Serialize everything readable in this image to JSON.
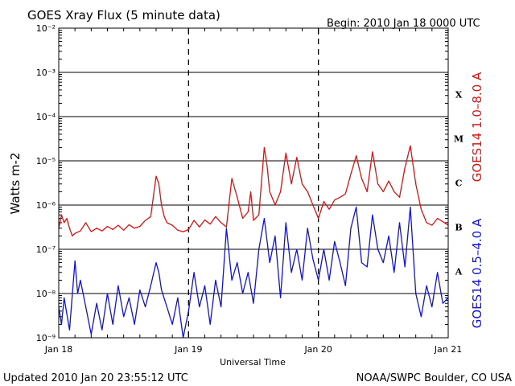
{
  "title": "GOES Xray Flux (5 minute data)",
  "begin_label": "Begin:  2010 Jan 18 0000 UTC",
  "footer_left": "Updated 2010 Jan 20 23:55:12 UTC",
  "footer_right": "NOAA/SWPC Boulder, CO USA",
  "chart_data": {
    "type": "line",
    "title": "GOES Xray Flux (5 minute data)",
    "xlabel": "Universal Time",
    "ylabel": "Watts m-2",
    "y_scale": "log",
    "ylim": [
      1e-09,
      0.01
    ],
    "xlim": [
      0,
      72
    ],
    "x_unit": "hours since 2010 Jan 18 0000 UTC",
    "x_ticks": [
      {
        "x": 0,
        "label": "Jan 18"
      },
      {
        "x": 24,
        "label": "Jan 19"
      },
      {
        "x": 48,
        "label": "Jan 20"
      },
      {
        "x": 72,
        "label": "Jan 21"
      }
    ],
    "y_ticks": [
      {
        "exp": -9,
        "label": "10⁻⁹"
      },
      {
        "exp": -8,
        "label": "10⁻⁸"
      },
      {
        "exp": -7,
        "label": "10⁻⁷"
      },
      {
        "exp": -6,
        "label": "10⁻⁶"
      },
      {
        "exp": -5,
        "label": "10⁻⁵"
      },
      {
        "exp": -4,
        "label": "10⁻⁴"
      },
      {
        "exp": -3,
        "label": "10⁻³"
      },
      {
        "exp": -2,
        "label": "10⁻²"
      }
    ],
    "flare_classes": [
      {
        "label": "X",
        "value": 0.0001
      },
      {
        "label": "M",
        "value": 1e-05
      },
      {
        "label": "C",
        "value": 1e-06
      },
      {
        "label": "B",
        "value": 1e-07
      },
      {
        "label": "A",
        "value": 1e-08
      }
    ],
    "grid": true,
    "series": [
      {
        "name": "GOES14 1.0–8.0 A",
        "color": "#e01010",
        "points": [
          [
            0,
            3e-07
          ],
          [
            0.5,
            6e-07
          ],
          [
            1,
            4e-07
          ],
          [
            1.5,
            5e-07
          ],
          [
            2,
            3e-07
          ],
          [
            2.5,
            2e-07
          ],
          [
            3,
            2.3e-07
          ],
          [
            4,
            2.6e-07
          ],
          [
            5,
            4e-07
          ],
          [
            6,
            2.5e-07
          ],
          [
            7,
            3e-07
          ],
          [
            8,
            2.6e-07
          ],
          [
            9,
            3.3e-07
          ],
          [
            10,
            2.8e-07
          ],
          [
            11,
            3.5e-07
          ],
          [
            12,
            2.7e-07
          ],
          [
            13,
            3.6e-07
          ],
          [
            14,
            3e-07
          ],
          [
            15,
            3.3e-07
          ],
          [
            16,
            4.5e-07
          ],
          [
            17,
            5.5e-07
          ],
          [
            18,
            4.5e-06
          ],
          [
            18.5,
            3e-06
          ],
          [
            19,
            1e-06
          ],
          [
            19.5,
            5.5e-07
          ],
          [
            20,
            4e-07
          ],
          [
            21,
            3.5e-07
          ],
          [
            22,
            2.7e-07
          ],
          [
            23,
            2.5e-07
          ],
          [
            24,
            2.8e-07
          ],
          [
            25,
            4.5e-07
          ],
          [
            26,
            3.2e-07
          ],
          [
            27,
            4.6e-07
          ],
          [
            28,
            3.7e-07
          ],
          [
            29,
            5.5e-07
          ],
          [
            30,
            4e-07
          ],
          [
            31,
            3.2e-07
          ],
          [
            32,
            4e-06
          ],
          [
            33,
            1.5e-06
          ],
          [
            34,
            5e-07
          ],
          [
            35,
            7e-07
          ],
          [
            35.5,
            2e-06
          ],
          [
            36,
            4.5e-07
          ],
          [
            37,
            6e-07
          ],
          [
            38,
            2e-05
          ],
          [
            38.5,
            8e-06
          ],
          [
            39,
            2e-06
          ],
          [
            40,
            1e-06
          ],
          [
            41,
            2e-06
          ],
          [
            42,
            1.5e-05
          ],
          [
            43,
            3e-06
          ],
          [
            44,
            1.2e-05
          ],
          [
            45,
            3e-06
          ],
          [
            46,
            2e-06
          ],
          [
            47,
            1e-06
          ],
          [
            48,
            5e-07
          ],
          [
            49,
            1.2e-06
          ],
          [
            50,
            8e-07
          ],
          [
            51,
            1.3e-06
          ],
          [
            52,
            1.5e-06
          ],
          [
            53,
            1.8e-06
          ],
          [
            54,
            5e-06
          ],
          [
            55,
            1.3e-05
          ],
          [
            56,
            4e-06
          ],
          [
            57,
            2e-06
          ],
          [
            58,
            1.6e-05
          ],
          [
            59,
            3e-06
          ],
          [
            60,
            2e-06
          ],
          [
            61,
            3.5e-06
          ],
          [
            62,
            2e-06
          ],
          [
            63,
            1.5e-06
          ],
          [
            64,
            7e-06
          ],
          [
            65,
            2.2e-05
          ],
          [
            66,
            3e-06
          ],
          [
            67,
            8e-07
          ],
          [
            68,
            4e-07
          ],
          [
            69,
            3.5e-07
          ],
          [
            70,
            5e-07
          ],
          [
            71,
            4.2e-07
          ],
          [
            72,
            3.5e-07
          ]
        ]
      },
      {
        "name": "GOES14 0.5–4.0 A",
        "color": "#1010e0",
        "points": [
          [
            0,
            5e-09
          ],
          [
            0.5,
            2e-09
          ],
          [
            1,
            8e-09
          ],
          [
            2,
            1.5e-09
          ],
          [
            3,
            5.5e-08
          ],
          [
            3.5,
            1e-08
          ],
          [
            4,
            2e-08
          ],
          [
            5,
            5e-09
          ],
          [
            6,
            1.2e-09
          ],
          [
            7,
            6e-09
          ],
          [
            8,
            1.5e-09
          ],
          [
            9,
            1e-08
          ],
          [
            10,
            2e-09
          ],
          [
            11,
            1.5e-08
          ],
          [
            12,
            3e-09
          ],
          [
            13,
            8e-09
          ],
          [
            14,
            2e-09
          ],
          [
            15,
            1.2e-08
          ],
          [
            16,
            5e-09
          ],
          [
            17,
            1.5e-08
          ],
          [
            18,
            5e-08
          ],
          [
            18.5,
            3e-08
          ],
          [
            19,
            1.2e-08
          ],
          [
            20,
            5e-09
          ],
          [
            21,
            2e-09
          ],
          [
            22,
            8e-09
          ],
          [
            23,
            1e-09
          ],
          [
            24,
            4e-09
          ],
          [
            25,
            3e-08
          ],
          [
            26,
            5e-09
          ],
          [
            27,
            1.5e-08
          ],
          [
            28,
            2e-09
          ],
          [
            29,
            2e-08
          ],
          [
            30,
            5e-09
          ],
          [
            31,
            3e-07
          ],
          [
            32,
            2e-08
          ],
          [
            33,
            5e-08
          ],
          [
            34,
            1e-08
          ],
          [
            35,
            3e-08
          ],
          [
            36,
            6e-09
          ],
          [
            37,
            1e-07
          ],
          [
            38,
            5e-07
          ],
          [
            39,
            5e-08
          ],
          [
            40,
            2e-07
          ],
          [
            41,
            8e-09
          ],
          [
            42,
            4e-07
          ],
          [
            43,
            3e-08
          ],
          [
            44,
            1e-07
          ],
          [
            45,
            2e-08
          ],
          [
            46,
            3e-07
          ],
          [
            47,
            6e-08
          ],
          [
            48,
            2e-08
          ],
          [
            49,
            1e-07
          ],
          [
            50,
            2e-08
          ],
          [
            51,
            1.5e-07
          ],
          [
            52,
            5e-08
          ],
          [
            53,
            1.5e-08
          ],
          [
            54,
            3e-07
          ],
          [
            55,
            9e-07
          ],
          [
            56,
            5e-08
          ],
          [
            57,
            4e-08
          ],
          [
            58,
            6e-07
          ],
          [
            59,
            1e-07
          ],
          [
            60,
            5e-08
          ],
          [
            61,
            2e-07
          ],
          [
            62,
            3e-08
          ],
          [
            63,
            4e-07
          ],
          [
            64,
            4e-08
          ],
          [
            65,
            9e-07
          ],
          [
            66,
            1e-08
          ],
          [
            67,
            3e-09
          ],
          [
            68,
            1.5e-08
          ],
          [
            69,
            5e-09
          ],
          [
            70,
            3e-08
          ],
          [
            71,
            6e-09
          ],
          [
            72,
            8e-09
          ]
        ]
      }
    ]
  }
}
